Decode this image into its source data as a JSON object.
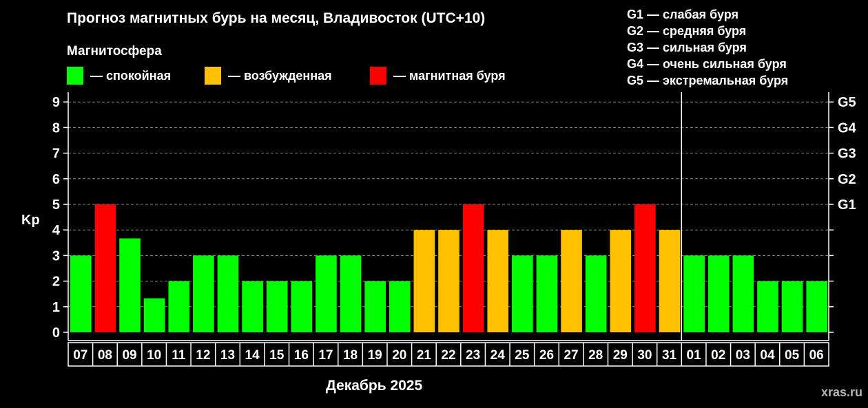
{
  "title": "Прогноз магнитных бурь на месяц, Владивосток (UTC+10)",
  "legend": {
    "heading": "Магнитосфера",
    "items": [
      {
        "label": "— спокойная",
        "color": "#00ff00"
      },
      {
        "label": "— возбужденная",
        "color": "#ffc000"
      },
      {
        "label": "— магнитная буря",
        "color": "#ff0000"
      }
    ]
  },
  "g_legend": [
    "G1 — слабая буря",
    "G2 — средняя буря",
    "G3 — сильная буря",
    "G4 — очень сильная буря",
    "G5 — экстремальная буря"
  ],
  "watermark": "xras.ru",
  "chart_data": {
    "type": "bar",
    "title": "Прогноз магнитных бурь на месяц, Владивосток (UTC+10)",
    "xlabel": "Декабрь 2025",
    "ylabel": "Kp",
    "ylim": [
      0,
      9
    ],
    "yticks": [
      "0",
      "1",
      "2",
      "3",
      "4",
      "5",
      "6",
      "7",
      "8",
      "9"
    ],
    "y2ticks": [
      {
        "kp": 5,
        "label": "G1"
      },
      {
        "kp": 6,
        "label": "G2"
      },
      {
        "kp": 7,
        "label": "G3"
      },
      {
        "kp": 8,
        "label": "G4"
      },
      {
        "kp": 9,
        "label": "G5"
      }
    ],
    "categories": [
      "07",
      "08",
      "09",
      "10",
      "11",
      "12",
      "13",
      "14",
      "15",
      "16",
      "17",
      "18",
      "19",
      "20",
      "21",
      "22",
      "23",
      "24",
      "25",
      "26",
      "27",
      "28",
      "29",
      "30",
      "31",
      "01",
      "02",
      "03",
      "04",
      "05",
      "06"
    ],
    "values": [
      3,
      5,
      3.67,
      1.33,
      2,
      3,
      3,
      2,
      2,
      2,
      3,
      3,
      2,
      2,
      4,
      4,
      5,
      4,
      3,
      3,
      4,
      3,
      4,
      5,
      4,
      3,
      3,
      3,
      2,
      2,
      2
    ],
    "level_colors": {
      "quiet": "#00ff00",
      "active": "#ffc000",
      "storm": "#ff0000"
    },
    "month_divider_after": "31",
    "grid": "dashed horizontal"
  }
}
